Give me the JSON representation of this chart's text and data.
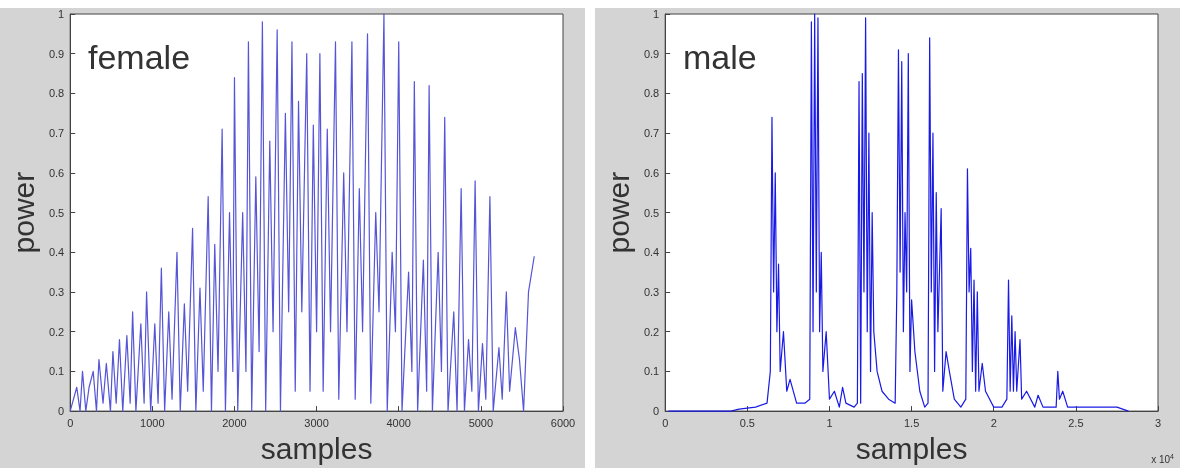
{
  "chart_data": [
    {
      "type": "line",
      "xlabel": "samples",
      "ylabel": "power",
      "annotations": [
        "female"
      ],
      "marker": "none",
      "grid": false,
      "xlim": [
        0,
        6000
      ],
      "xticks": [
        0,
        1000,
        2000,
        3000,
        4000,
        5000,
        6000
      ],
      "ylim": [
        0,
        1
      ],
      "yticks": [
        0,
        0.1,
        0.2,
        0.3,
        0.4,
        0.5,
        0.6,
        0.7,
        0.8,
        0.9,
        1
      ],
      "series": [
        {
          "color": "#5555d6",
          "x": [
            0,
            80,
            120,
            150,
            190,
            230,
            280,
            320,
            350,
            400,
            440,
            490,
            520,
            560,
            600,
            640,
            690,
            730,
            760,
            800,
            860,
            900,
            930,
            980,
            1030,
            1070,
            1110,
            1150,
            1200,
            1240,
            1300,
            1340,
            1390,
            1430,
            1490,
            1530,
            1580,
            1620,
            1680,
            1720,
            1760,
            1800,
            1850,
            1890,
            1940,
            1980,
            2000,
            2040,
            2100,
            2140,
            2170,
            2210,
            2260,
            2300,
            2340,
            2380,
            2430,
            2470,
            2520,
            2560,
            2620,
            2660,
            2700,
            2740,
            2780,
            2820,
            2880,
            2920,
            2960,
            3000,
            3040,
            3080,
            3130,
            3170,
            3230,
            3270,
            3330,
            3370,
            3430,
            3470,
            3520,
            3560,
            3620,
            3660,
            3720,
            3760,
            3820,
            3860,
            3920,
            3960,
            4000,
            4040,
            4120,
            4160,
            4190,
            4230,
            4300,
            4340,
            4370,
            4410,
            4480,
            4520,
            4560,
            4600,
            4670,
            4710,
            4760,
            4800,
            4850,
            4890,
            4930,
            4970,
            5020,
            5060,
            5110,
            5150,
            5220,
            5260,
            5310,
            5350,
            5420,
            5470,
            5520,
            5580,
            5650
          ],
          "values": [
            0,
            0.06,
            0,
            0.1,
            0,
            0.06,
            0.1,
            0,
            0.13,
            0.02,
            0.12,
            0,
            0.15,
            0.02,
            0.18,
            0,
            0.19,
            0.02,
            0.25,
            0,
            0.22,
            0.02,
            0.3,
            0,
            0.22,
            0.02,
            0.36,
            0,
            0.25,
            0.03,
            0.4,
            0,
            0.27,
            0.05,
            0.46,
            0,
            0.31,
            0.05,
            0.54,
            0,
            0.42,
            0.1,
            0.71,
            0,
            0.5,
            0.1,
            0.84,
            0,
            0.5,
            0.1,
            0.93,
            0,
            0.59,
            0.15,
            0.98,
            0,
            0.68,
            0.2,
            0.96,
            0,
            0.75,
            0.25,
            0.93,
            0.05,
            0.78,
            0.25,
            0.9,
            0.05,
            0.72,
            0.2,
            0.9,
            0.05,
            0.71,
            0.2,
            0.93,
            0.03,
            0.6,
            0.2,
            0.93,
            0.03,
            0.56,
            0.2,
            0.95,
            0.02,
            0.5,
            0.25,
            1,
            0,
            0.4,
            0.2,
            0.93,
            0,
            0.35,
            0.1,
            0.83,
            0,
            0.38,
            0.05,
            0.82,
            0,
            0.4,
            0.1,
            0.74,
            0,
            0.25,
            0,
            0.56,
            0,
            0.18,
            0.05,
            0.58,
            0,
            0.17,
            0.03,
            0.54,
            0,
            0.16,
            0.03,
            0.3,
            0.05,
            0.21,
            0.13,
            0,
            0.3,
            0.39
          ]
        }
      ]
    },
    {
      "type": "line",
      "xlabel": "samples",
      "ylabel": "power",
      "annotations": [
        "male",
        "x 10$^{4}$"
      ],
      "marker": "none",
      "grid": false,
      "xlim": [
        0,
        3
      ],
      "xticks": [
        0,
        0.5,
        1,
        1.5,
        2,
        2.5,
        3
      ],
      "ylim": [
        0,
        1
      ],
      "yticks": [
        0,
        0.1,
        0.2,
        0.3,
        0.4,
        0.5,
        0.6,
        0.7,
        0.8,
        0.9,
        1
      ],
      "series": [
        {
          "color": "#1a1ae6",
          "x": [
            0.02,
            0.4,
            0.45,
            0.55,
            0.62,
            0.64,
            0.65,
            0.66,
            0.67,
            0.68,
            0.69,
            0.7,
            0.72,
            0.74,
            0.76,
            0.8,
            0.85,
            0.88,
            0.89,
            0.9,
            0.91,
            0.92,
            0.93,
            0.94,
            0.95,
            0.96,
            0.98,
            1.0,
            1.03,
            1.06,
            1.08,
            1.1,
            1.15,
            1.17,
            1.18,
            1.19,
            1.2,
            1.21,
            1.22,
            1.23,
            1.24,
            1.25,
            1.26,
            1.27,
            1.29,
            1.32,
            1.36,
            1.4,
            1.41,
            1.42,
            1.43,
            1.44,
            1.45,
            1.46,
            1.47,
            1.48,
            1.49,
            1.5,
            1.52,
            1.55,
            1.58,
            1.6,
            1.61,
            1.62,
            1.63,
            1.64,
            1.65,
            1.66,
            1.68,
            1.69,
            1.71,
            1.73,
            1.76,
            1.8,
            1.83,
            1.84,
            1.85,
            1.86,
            1.87,
            1.88,
            1.89,
            1.9,
            1.91,
            1.93,
            1.95,
            2.0,
            2.05,
            2.08,
            2.09,
            2.1,
            2.11,
            2.12,
            2.13,
            2.14,
            2.16,
            2.17,
            2.2,
            2.25,
            2.27,
            2.3,
            2.38,
            2.39,
            2.4,
            2.42,
            2.45,
            2.55,
            2.65,
            2.75,
            2.82
          ],
          "values": [
            0,
            0,
            0.005,
            0.01,
            0.02,
            0.1,
            0.74,
            0.3,
            0.6,
            0.2,
            0.37,
            0.1,
            0.2,
            0.05,
            0.08,
            0.02,
            0.02,
            0.03,
            0.98,
            0.2,
            1,
            0.3,
            0.99,
            0.2,
            0.4,
            0.1,
            0.2,
            0.03,
            0.05,
            0.01,
            0.06,
            0.02,
            0.01,
            0.02,
            0.83,
            0.02,
            0.85,
            0.3,
            0.99,
            0.2,
            0.7,
            0.1,
            0.5,
            0.2,
            0.1,
            0.05,
            0.03,
            0.02,
            0.3,
            0.91,
            0.35,
            0.88,
            0.2,
            0.5,
            0.3,
            0.9,
            0.1,
            0.28,
            0.15,
            0.05,
            0.01,
            0.02,
            0.94,
            0.3,
            0.7,
            0.1,
            0.55,
            0.2,
            0.51,
            0.05,
            0.15,
            0.1,
            0.03,
            0.01,
            0.03,
            0.61,
            0.3,
            0.41,
            0.1,
            0.33,
            0.05,
            0.3,
            0.05,
            0.12,
            0.05,
            0.01,
            0.01,
            0.03,
            0.33,
            0.05,
            0.24,
            0.05,
            0.2,
            0.05,
            0.18,
            0.03,
            0.05,
            0.01,
            0.04,
            0.01,
            0.01,
            0.1,
            0.03,
            0.05,
            0.01,
            0.01,
            0.01,
            0.01,
            0
          ]
        }
      ]
    }
  ]
}
